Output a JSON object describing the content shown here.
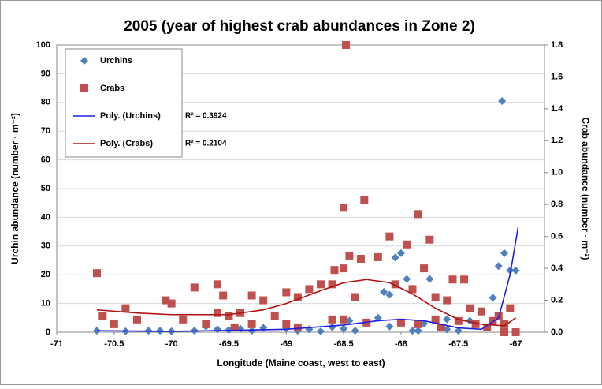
{
  "chart_data": {
    "type": "scatter",
    "title": "2005 (year of highest crab abundances in Zone 2)",
    "x_label": "Longitude (Maine coast, west to east)",
    "y_label": "Urchin abundance (number · m⁻²)",
    "y2_label": "Crab abundance (number · m⁻²)",
    "xlim": [
      -71,
      -66.75
    ],
    "xticks": [
      -71,
      -70.5,
      -70,
      -69.5,
      -69,
      -68.5,
      -68,
      -67.5,
      -67
    ],
    "ylim": [
      0,
      100
    ],
    "yticks": [
      0,
      10,
      20,
      30,
      40,
      50,
      60,
      70,
      80,
      90,
      100
    ],
    "y2lim": [
      0,
      1.8
    ],
    "y2ticks": [
      {
        "value": 0,
        "label": "0.0"
      },
      0.2,
      0.4,
      0.6,
      0.8,
      {
        "value": 1,
        "label": "1.0"
      },
      1.2,
      1.4,
      1.6,
      1.8
    ],
    "grid": true,
    "series": [
      {
        "name": "Urchins",
        "color": "#4f81bd",
        "marker": "diamond",
        "x": [
          -67.12,
          -67.1,
          -67.15,
          -67.05,
          -67.0,
          -68.0,
          -68.05,
          -67.95,
          -67.75,
          -68.15,
          -68.1,
          -67.2,
          -70.65,
          -70.4,
          -70.2,
          -70.0,
          -69.8,
          -69.6,
          -69.5,
          -69.4,
          -69.2,
          -69.0,
          -68.9,
          -68.8,
          -68.6,
          -68.5,
          -68.45,
          -68.3,
          -68.2,
          -68.1,
          -67.9,
          -67.8,
          -67.6,
          -67.5,
          -67.4,
          -67.3,
          -67.6,
          -67.85,
          -69.3,
          -69.7,
          -70.1,
          -68.7,
          -68.4
        ],
        "values": [
          80.5,
          27.5,
          23,
          21.5,
          21.5,
          27.5,
          26,
          18.5,
          18.5,
          14,
          13,
          12,
          0.5,
          0.3,
          0.5,
          0.3,
          0.5,
          1,
          0.8,
          1.2,
          1.5,
          1.3,
          0.5,
          1,
          1.8,
          1.2,
          4,
          3.5,
          5,
          2,
          0.5,
          3,
          1,
          0.5,
          4,
          7,
          4.5,
          0.5,
          0.5,
          2,
          0.5,
          0.3,
          0.5
        ]
      },
      {
        "name": "Crabs",
        "color": "#c0504d",
        "marker": "square",
        "axis": "y2",
        "x": [
          -68.48,
          -68.32,
          -68.5,
          -67.85,
          -67.75,
          -68.1,
          -68.2,
          -67.95,
          -68.45,
          -68.35,
          -68.5,
          -68.58,
          -68.6,
          -70.65,
          -69.6,
          -69.8,
          -69.55,
          -70.05,
          -70.0,
          -69.5,
          -69.4,
          -69.3,
          -69.2,
          -69.0,
          -68.8,
          -68.9,
          -68.7,
          -68.4,
          -68.05,
          -67.9,
          -67.8,
          -67.7,
          -67.6,
          -67.55,
          -67.45,
          -67.4,
          -67.3,
          -67.2,
          -67.15,
          -67.1,
          -67.05,
          -67.0,
          -67.1,
          -70.6,
          -70.4,
          -70.5,
          -70.3,
          -69.9,
          -69.7,
          -69.6,
          -69.45,
          -69.3,
          -69.1,
          -69.0,
          -68.9,
          -68.6,
          -68.5,
          -68.3,
          -68.0,
          -67.85,
          -67.7,
          -67.65,
          -67.5,
          -67.35,
          -67.25
        ],
        "values": [
          1.8,
          0.83,
          0.78,
          0.74,
          0.58,
          0.6,
          0.47,
          0.55,
          0.48,
          0.46,
          0.4,
          0.39,
          0.3,
          0.37,
          0.3,
          0.28,
          0.23,
          0.2,
          0.18,
          0.1,
          0.12,
          0.23,
          0.2,
          0.25,
          0.27,
          0.22,
          0.3,
          0.22,
          0.3,
          0.27,
          0.4,
          0.22,
          0.2,
          0.33,
          0.33,
          0.15,
          0.13,
          0.07,
          0.1,
          0.05,
          0.15,
          0,
          0,
          0.1,
          0.15,
          0.05,
          0.08,
          0.08,
          0.05,
          0.12,
          0.03,
          0.05,
          0.1,
          0.05,
          0.03,
          0.08,
          0.08,
          0.06,
          0.06,
          0.05,
          0.08,
          0.03,
          0.07,
          0.05,
          0.03
        ]
      },
      {
        "name": "Poly. (Urchins)",
        "color": "#1f1fe0",
        "marker": "line",
        "x": [
          -70.65,
          -70,
          -69.5,
          -69,
          -68.5,
          -68.2,
          -68,
          -67.8,
          -67.5,
          -67.3,
          -67.15,
          -67.05,
          -66.98
        ],
        "values": [
          0.5,
          0.3,
          0.6,
          1,
          2.5,
          4,
          4.5,
          4,
          1.5,
          1,
          5,
          20,
          36.5
        ]
      },
      {
        "name": "Poly. (Crabs)",
        "color": "#b01010",
        "marker": "line",
        "axis": "y2",
        "x": [
          -70.65,
          -70.3,
          -70,
          -69.5,
          -69.2,
          -69,
          -68.7,
          -68.5,
          -68.3,
          -68.1,
          -67.9,
          -67.7,
          -67.5,
          -67.3,
          -67.1,
          -67.0
        ],
        "values": [
          0.14,
          0.12,
          0.11,
          0.11,
          0.14,
          0.18,
          0.26,
          0.31,
          0.33,
          0.31,
          0.24,
          0.15,
          0.08,
          0.05,
          0.04,
          0.09
        ]
      }
    ],
    "annotations": [
      "R² = 0.3924",
      "R² = 0.2104"
    ]
  }
}
